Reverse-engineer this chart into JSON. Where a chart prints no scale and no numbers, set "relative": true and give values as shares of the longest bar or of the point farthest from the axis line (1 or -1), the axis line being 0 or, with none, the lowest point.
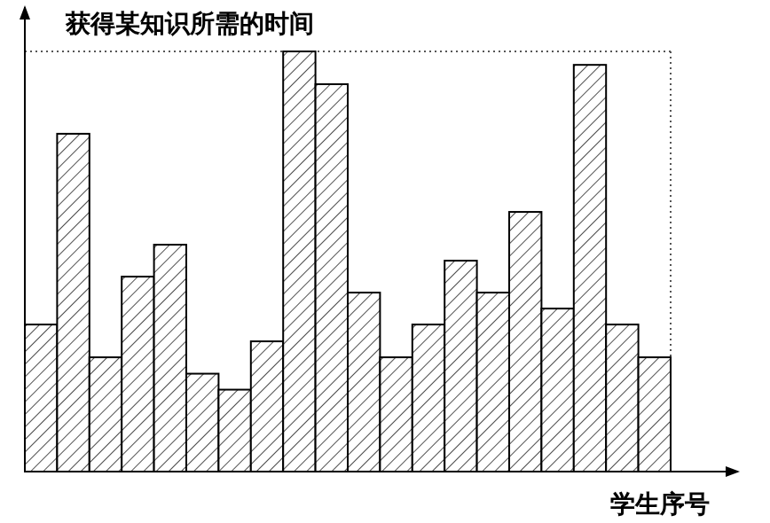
{
  "chart_data": {
    "type": "bar",
    "relative": true,
    "ylabel": "获得某知识所需的时间",
    "xlabel": "学生序号",
    "color": "#000000",
    "categories": [
      null,
      null,
      null,
      null,
      null,
      null,
      null,
      null,
      null,
      null,
      null,
      null,
      null,
      null,
      null,
      null,
      null,
      null,
      null,
      null
    ],
    "values": [
      0.35,
      0.804,
      0.272,
      0.464,
      0.54,
      0.233,
      0.195,
      0.31,
      1,
      0.922,
      0.426,
      0.272,
      0.35,
      0.502,
      0.426,
      0.618,
      0.388,
      0.968,
      0.35,
      0.272
    ],
    "ref_lines": [
      {
        "axis": "y",
        "value": 1,
        "line_style": "dotted",
        "color": "#555555"
      }
    ]
  }
}
